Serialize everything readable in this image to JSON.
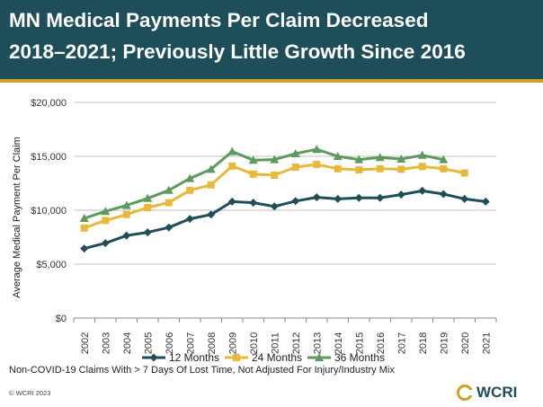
{
  "title": {
    "line1": "MN Medical Payments Per Claim Decreased",
    "line2": "2018–2021; Previously Little Growth Since 2016"
  },
  "colors": {
    "band": "#1e4e5a",
    "accent": "#c9a227",
    "series_12": "#1e4e5a",
    "series_24": "#e8b83a",
    "series_36": "#5e9a5e",
    "grid": "#bfbfbf"
  },
  "chart_data": {
    "type": "line",
    "title": "MN Medical Payments Per Claim Decreased 2018–2021; Previously Little Growth Since 2016",
    "xlabel": "",
    "ylabel": "Average Medical Payment Per Claim",
    "categories": [
      "2002",
      "2003",
      "2004",
      "2005",
      "2006",
      "2007",
      "2008",
      "2009",
      "2010",
      "2011",
      "2012",
      "2013",
      "2014",
      "2015",
      "2016",
      "2017",
      "2018",
      "2019",
      "2020",
      "2021"
    ],
    "ylim": [
      0,
      20000
    ],
    "y_ticks": [
      0,
      5000,
      10000,
      15000,
      20000
    ],
    "y_tick_labels": [
      "$0",
      "$5,000",
      "$10,000",
      "$15,000",
      "$20,000"
    ],
    "grid": true,
    "legend_position": "bottom",
    "series": [
      {
        "name": "12 Months",
        "marker": "diamond",
        "values": [
          6450,
          6950,
          7650,
          7950,
          8400,
          9200,
          9600,
          10800,
          10700,
          10350,
          10850,
          11200,
          11050,
          11150,
          11150,
          11450,
          11800,
          11500,
          11050,
          10800
        ]
      },
      {
        "name": "24 Months",
        "marker": "square",
        "values": [
          8350,
          9050,
          9600,
          10250,
          10700,
          11850,
          12350,
          14100,
          13350,
          13250,
          14000,
          14250,
          13850,
          13750,
          13850,
          13800,
          14050,
          13850,
          13450,
          null
        ]
      },
      {
        "name": "36 Months",
        "marker": "triangle",
        "values": [
          9250,
          9900,
          10450,
          11100,
          11850,
          12950,
          13800,
          15450,
          14650,
          14700,
          15250,
          15650,
          15000,
          14700,
          14900,
          14750,
          15100,
          14700,
          null,
          null
        ]
      }
    ]
  },
  "footnote": "Non-COVID-19 Claims With > 7 Days Of Lost Time, Not Adjusted For Injury/Industry Mix",
  "copyright": "© WCRI 2023",
  "logo": {
    "text": "WCRI",
    "icon": "wcri-logo-icon"
  }
}
